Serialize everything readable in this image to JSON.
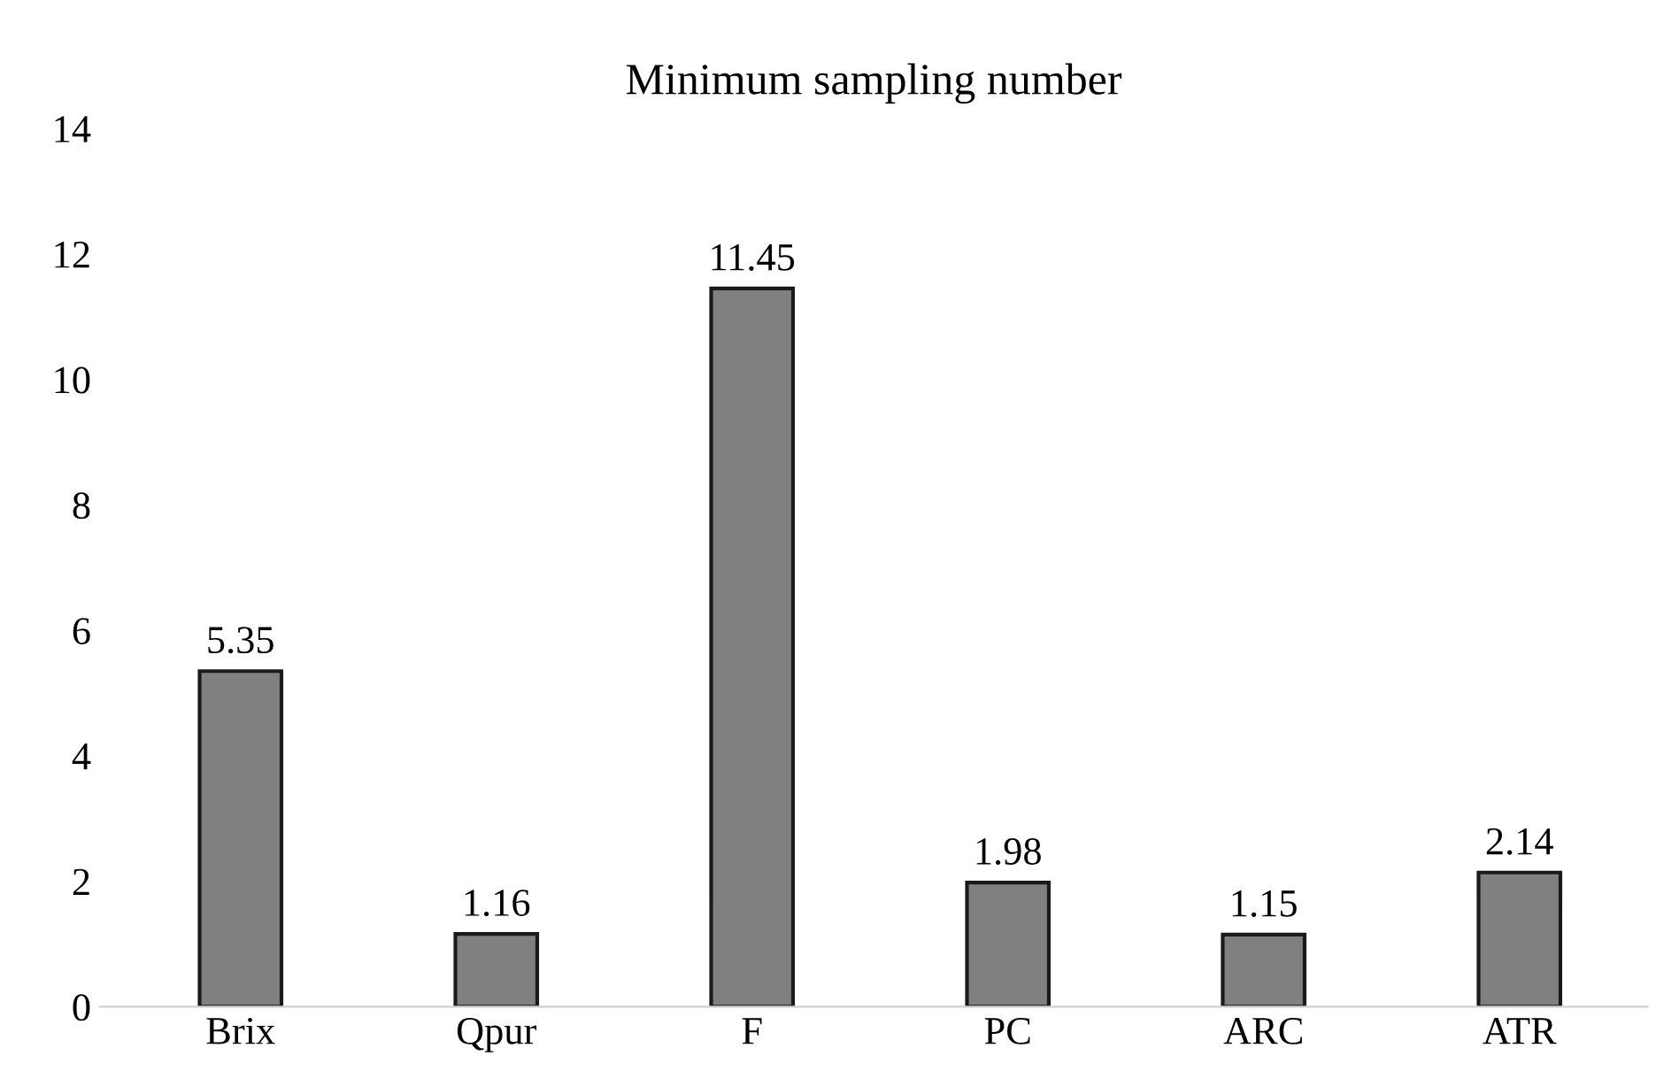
{
  "chart_data": {
    "type": "bar",
    "title": "Minimum sampling number",
    "categories": [
      "Brix",
      "Qpur",
      "F",
      "PC",
      "ARC",
      "ATR"
    ],
    "values": [
      5.35,
      1.16,
      11.45,
      1.98,
      1.15,
      2.14
    ],
    "color": "#808080",
    "ylim": [
      0,
      14
    ],
    "yticks": [
      0,
      2,
      4,
      6,
      8,
      10,
      12,
      14
    ],
    "data_labels": true,
    "grid": false,
    "legend": false
  }
}
